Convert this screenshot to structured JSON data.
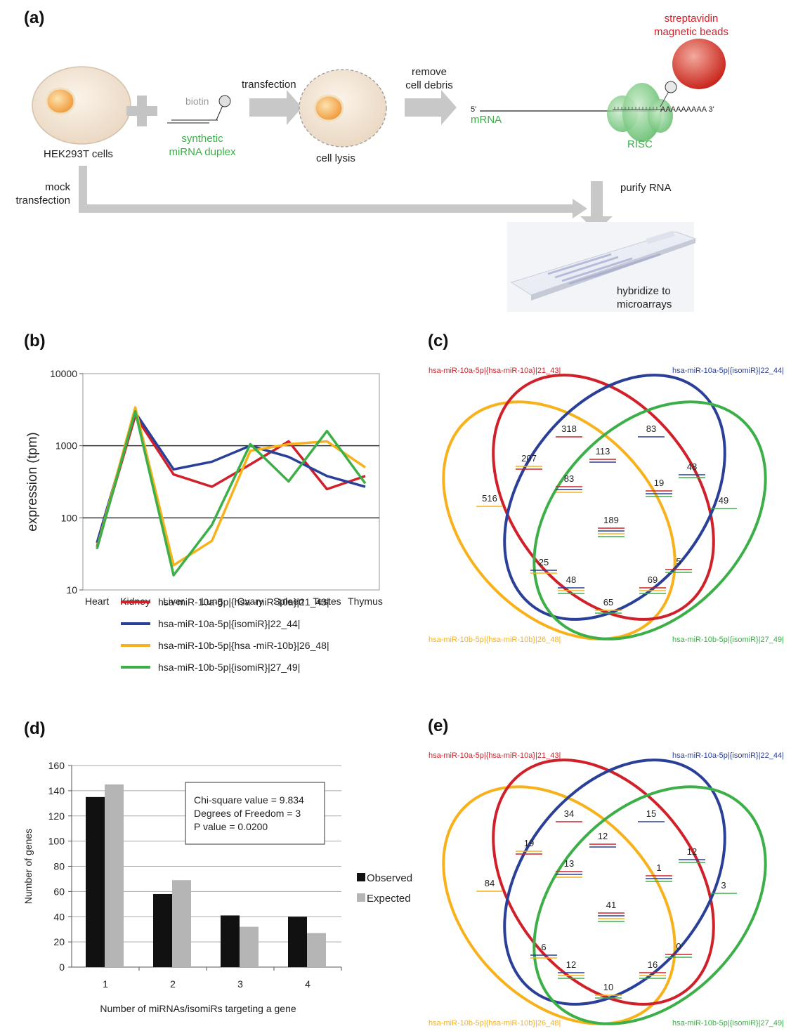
{
  "colors": {
    "red": "#d0202a",
    "blue": "#2a3f97",
    "orange": "#f7b21b",
    "green": "#3daf48",
    "grey": "#b5b5b5",
    "black": "#111111"
  },
  "panel_a": {
    "letter": "(a)",
    "cells_label": "HEK293T cells",
    "biotin_label": "biotin",
    "duplex_label_1": "synthetic",
    "duplex_label_2": "miRNA duplex",
    "transfection_label": "transfection",
    "lysis_label": "cell lysis",
    "remove_label_1": "remove",
    "remove_label_2": "cell debris",
    "five_prime": "5'",
    "mrna_label": "mRNA",
    "polya_label": "AAAAAAAAA 3'",
    "risc_label": "RISC",
    "beads_label_1": "streptavidin",
    "beads_label_2": "magnetic beads",
    "purify_label": "purify RNA",
    "mock_label_1": "mock",
    "mock_label_2": "transfection",
    "hybridize_label_1": "hybridize to",
    "hybridize_label_2": "microarrays"
  },
  "panel_b": {
    "letter": "(b)",
    "chart_data": {
      "type": "line",
      "ylabel": "expression (tpm)",
      "yscale": "log",
      "ylim": [
        10,
        10000
      ],
      "ytick_labels": [
        "10000",
        "1000",
        "100",
        "10"
      ],
      "categories": [
        "Heart",
        "Kidney",
        "Liver",
        "Lung",
        "Ovary",
        "Spleen",
        "Testes",
        "Thymus"
      ],
      "series": [
        {
          "name": "hsa-miR-10a-5p|{hsa -miR-10a}|21_43|",
          "color": "#d0202a",
          "values": [
            40,
            2600,
            400,
            270,
            550,
            1150,
            250,
            380
          ]
        },
        {
          "name": "hsa-miR-10a-5p|{isomiR}|22_44|",
          "color": "#2a3f97",
          "values": [
            45,
            2900,
            470,
            600,
            1000,
            700,
            380,
            270
          ]
        },
        {
          "name": "hsa-miR-10b-5p|{hsa -miR-10b}|26_48|",
          "color": "#f7b21b",
          "values": [
            38,
            3400,
            22,
            48,
            850,
            1050,
            1150,
            500
          ]
        },
        {
          "name": "hsa-miR-10b-5p|{isomiR}|27_49|",
          "color": "#3daf48",
          "values": [
            37,
            3000,
            16,
            80,
            1050,
            320,
            1600,
            300
          ]
        }
      ],
      "grid": "major gridlines at 100 and 1000",
      "legend": "bottom"
    }
  },
  "panel_c": {
    "letter": "(c)",
    "labels": {
      "red": "hsa-miR-10a-5p|{hsa-miR-10a}|21_43|",
      "blue": "hsa-miR-10a-5p|{isomiR}|22_44|",
      "orange": "hsa-miR-10b-5p|{hsa-miR-10b}|26_48|",
      "green": "hsa-miR-10b-5p|{isomiR}|27_49|"
    },
    "regions": [
      {
        "value": "318",
        "sets": [
          "red"
        ]
      },
      {
        "value": "83",
        "sets": [
          "blue"
        ]
      },
      {
        "value": "113",
        "sets": [
          "red",
          "blue"
        ]
      },
      {
        "value": "207",
        "sets": [
          "orange",
          "red"
        ]
      },
      {
        "value": "48",
        "sets": [
          "blue",
          "green"
        ]
      },
      {
        "value": "83",
        "sets": [
          "red",
          "blue",
          "orange"
        ]
      },
      {
        "value": "19",
        "sets": [
          "red",
          "blue",
          "green"
        ]
      },
      {
        "value": "516",
        "sets": [
          "orange"
        ]
      },
      {
        "value": "49",
        "sets": [
          "green"
        ]
      },
      {
        "value": "189",
        "sets": [
          "red",
          "blue",
          "orange",
          "green"
        ]
      },
      {
        "value": "25",
        "sets": [
          "blue",
          "orange"
        ]
      },
      {
        "value": "5",
        "sets": [
          "red",
          "green"
        ]
      },
      {
        "value": "48",
        "sets": [
          "blue",
          "orange",
          "green"
        ]
      },
      {
        "value": "69",
        "sets": [
          "red",
          "orange",
          "green"
        ]
      },
      {
        "value": "65",
        "sets": [
          "orange",
          "green"
        ]
      }
    ]
  },
  "panel_d": {
    "letter": "(d)",
    "chart_data": {
      "type": "bar",
      "categories": [
        "1",
        "2",
        "3",
        "4"
      ],
      "series": [
        {
          "name": "Observed",
          "color": "#111111",
          "values": [
            135,
            58,
            41,
            40
          ]
        },
        {
          "name": "Expected",
          "color": "#b5b5b5",
          "values": [
            145,
            69,
            32,
            27
          ]
        }
      ],
      "xlabel": "Number of miRNAs/isomiRs  targeting a gene",
      "ylabel": "Number of genes",
      "ylim": [
        0,
        160
      ],
      "yticks": [
        0,
        20,
        40,
        60,
        80,
        100,
        120,
        140,
        160
      ],
      "legend": "right",
      "annotation": [
        "Chi-square value = 9.834",
        "Degrees of Freedom = 3",
        "P value = 0.0200"
      ]
    }
  },
  "panel_e": {
    "letter": "(e)",
    "labels": {
      "red": "hsa-miR-10a-5p|{hsa-miR-10a}|21_43|",
      "blue": "hsa-miR-10a-5p|{isomiR}|22_44|",
      "orange": "hsa-miR-10b-5p|{hsa-miR-10b}|26_48|",
      "green": "hsa-miR-10b-5p|{isomiR}|27_49|"
    },
    "regions": [
      {
        "value": "34",
        "sets": [
          "red"
        ]
      },
      {
        "value": "15",
        "sets": [
          "blue"
        ]
      },
      {
        "value": "12",
        "sets": [
          "red",
          "blue"
        ]
      },
      {
        "value": "19",
        "sets": [
          "orange",
          "red"
        ]
      },
      {
        "value": "12",
        "sets": [
          "blue",
          "green"
        ]
      },
      {
        "value": "13",
        "sets": [
          "red",
          "blue",
          "orange"
        ]
      },
      {
        "value": "1",
        "sets": [
          "red",
          "blue",
          "green"
        ]
      },
      {
        "value": "84",
        "sets": [
          "orange"
        ]
      },
      {
        "value": "3",
        "sets": [
          "green"
        ]
      },
      {
        "value": "41",
        "sets": [
          "red",
          "blue",
          "orange",
          "green"
        ]
      },
      {
        "value": "6",
        "sets": [
          "blue",
          "orange"
        ]
      },
      {
        "value": "0",
        "sets": [
          "red",
          "green"
        ]
      },
      {
        "value": "12",
        "sets": [
          "blue",
          "orange",
          "green"
        ]
      },
      {
        "value": "16",
        "sets": [
          "red",
          "orange",
          "green"
        ]
      },
      {
        "value": "10",
        "sets": [
          "orange",
          "green"
        ]
      }
    ]
  }
}
